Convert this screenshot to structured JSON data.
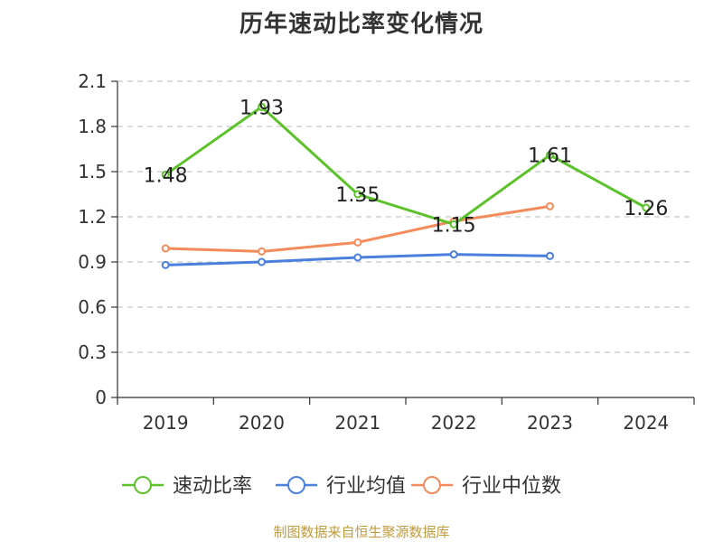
{
  "chart_data": {
    "type": "line",
    "title": "历年速动比率变化情况",
    "categories": [
      "2019",
      "2020",
      "2021",
      "2022",
      "2023",
      "2024"
    ],
    "ylim": [
      0,
      2.1
    ],
    "yticks": [
      "0",
      "0.3",
      "0.6",
      "0.9",
      "1.2",
      "1.5",
      "1.8",
      "2.1"
    ],
    "grid": true,
    "legend_position": "bottom",
    "series": [
      {
        "name": "速动比率",
        "color": "#5cc22a",
        "values": [
          1.48,
          1.93,
          1.35,
          1.15,
          1.61,
          1.26
        ],
        "labels": [
          "1.48",
          "1.93",
          "1.35",
          "1.15",
          "1.61",
          "1.26"
        ],
        "show_labels": true
      },
      {
        "name": "行业均值",
        "color": "#4a7fde",
        "values": [
          0.88,
          0.9,
          0.93,
          0.95,
          0.94,
          null
        ],
        "show_labels": false
      },
      {
        "name": "行业中位数",
        "color": "#f58a5a",
        "values": [
          0.99,
          0.97,
          1.03,
          1.17,
          1.27,
          null
        ],
        "show_labels": false
      }
    ],
    "source": "制图数据来自恒生聚源数据库"
  }
}
